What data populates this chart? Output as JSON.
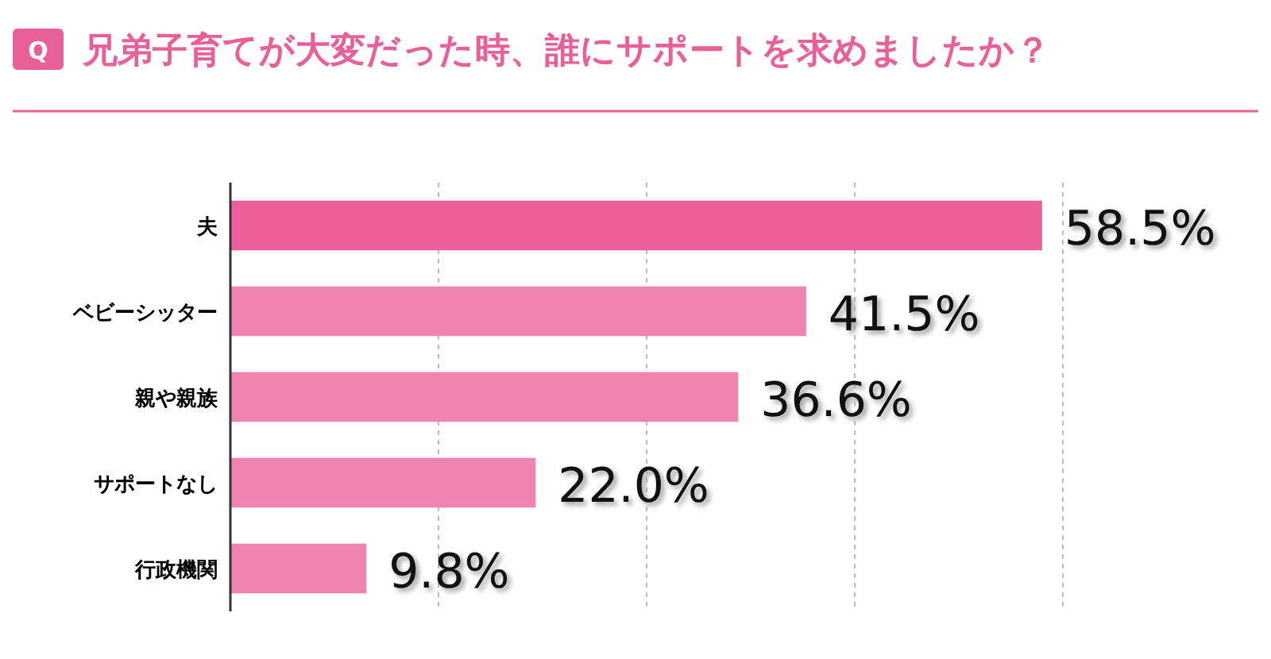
{
  "chart_data": {
    "type": "bar",
    "orientation": "horizontal",
    "title": "兄弟子育てが大変だった時、誰にサポートを求めましたか？",
    "annotations": [
      "Q"
    ],
    "categories": [
      "夫",
      "ベビーシッター",
      "親や親族",
      "サポートなし",
      "行政機関"
    ],
    "values": [
      58.5,
      41.5,
      36.6,
      22.0,
      9.8
    ],
    "colors": [
      "#ec5f9a",
      "#ef84b0",
      "#ef84b0",
      "#ef84b0",
      "#ef84b0"
    ],
    "value_labels": [
      "58.5%",
      "41.5%",
      "36.6%",
      "22.0%",
      "9.8%"
    ],
    "xticks": [
      {
        "value": 15,
        "label": null
      },
      {
        "value": 30,
        "label": null
      },
      {
        "value": 45,
        "label": null
      },
      {
        "value": 60,
        "label": null
      }
    ],
    "grid": "x",
    "tick_labels": "y"
  }
}
